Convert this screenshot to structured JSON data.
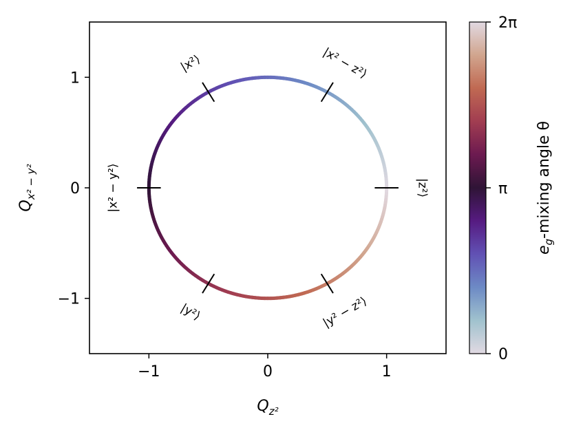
{
  "chart_data": {
    "type": "line",
    "xlabel_main": "Q",
    "xlabel_sub": "z²",
    "ylabel_main": "Q",
    "ylabel_sub": "x² − y²",
    "xlim": [
      -1.5,
      1.5
    ],
    "ylim": [
      -1.5,
      1.5
    ],
    "x_ticks": [
      {
        "value": -1,
        "label": "−1"
      },
      {
        "value": 0,
        "label": "0"
      },
      {
        "value": 1,
        "label": "1"
      }
    ],
    "y_ticks": [
      {
        "value": -1,
        "label": "−1"
      },
      {
        "value": 0,
        "label": "0"
      },
      {
        "value": 1,
        "label": "1"
      }
    ],
    "circle": {
      "radius": 1,
      "theta_range": [
        0,
        6.283185
      ]
    },
    "state_marks": [
      {
        "angle_deg": 0,
        "label": "|z²⟩"
      },
      {
        "angle_deg": 60,
        "label": "|x² − z²⟩"
      },
      {
        "angle_deg": 120,
        "label": "|x²⟩"
      },
      {
        "angle_deg": 180,
        "label": "|x² − y²⟩"
      },
      {
        "angle_deg": 240,
        "label": "|y²⟩"
      },
      {
        "angle_deg": 300,
        "label": "|y² − z²⟩"
      }
    ],
    "colorbar": {
      "label_prefix": "e",
      "label_sub": "g",
      "label_suffix": "-mixing angle θ",
      "ticks": [
        {
          "value": 0,
          "label": "0"
        },
        {
          "value": 3.141593,
          "label": "π"
        },
        {
          "value": 6.283185,
          "label": "2π"
        }
      ],
      "colormap": [
        "#e1d9e2",
        "#a0c2ce",
        "#6d8ac5",
        "#6151b4",
        "#561b81",
        "#2f1436",
        "#6c1a50",
        "#a13d51",
        "#c06952",
        "#d1a58e",
        "#e1d9e2"
      ]
    }
  }
}
